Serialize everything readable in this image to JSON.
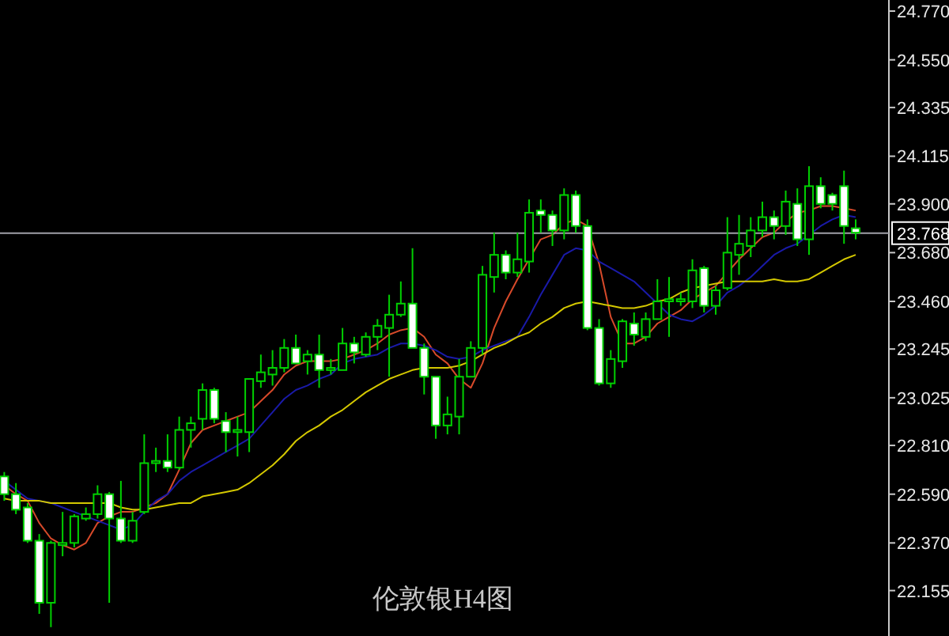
{
  "chart_data": {
    "type": "candlestick",
    "title": "伦敦银H4图",
    "color": "#00d000",
    "categories": [
      null,
      null,
      null,
      null,
      null,
      null,
      null,
      null,
      null,
      null,
      null,
      null,
      null,
      null,
      null,
      null,
      null,
      null,
      null,
      null,
      null,
      null,
      null,
      null,
      null,
      null,
      null,
      null,
      null,
      null,
      null,
      null,
      null,
      null,
      null,
      null,
      null,
      null,
      null,
      null,
      null,
      null,
      null,
      null,
      null,
      null,
      null,
      null,
      null,
      null,
      null,
      null,
      null,
      null,
      null,
      null,
      null,
      null,
      null,
      null,
      null,
      null,
      null,
      null,
      null,
      null,
      null,
      null,
      null,
      null,
      null,
      null,
      null,
      null
    ],
    "ohlc": [
      [
        22.67,
        22.69,
        22.56,
        22.59
      ],
      [
        22.59,
        22.64,
        22.5,
        22.52
      ],
      [
        22.53,
        22.55,
        22.37,
        22.38
      ],
      [
        22.38,
        22.41,
        22.05,
        22.1
      ],
      [
        22.1,
        22.38,
        21.99,
        22.37
      ],
      [
        22.36,
        22.51,
        22.31,
        22.37
      ],
      [
        22.37,
        22.5,
        22.35,
        22.49
      ],
      [
        22.48,
        22.53,
        22.47,
        22.5
      ],
      [
        22.5,
        22.63,
        22.48,
        22.59
      ],
      [
        22.59,
        22.6,
        22.1,
        22.48
      ],
      [
        22.48,
        22.65,
        22.37,
        22.38
      ],
      [
        22.38,
        22.51,
        22.37,
        22.47
      ],
      [
        22.51,
        22.86,
        22.5,
        22.73
      ],
      [
        22.73,
        22.8,
        22.69,
        22.74
      ],
      [
        22.74,
        22.86,
        22.69,
        22.71
      ],
      [
        22.71,
        22.94,
        22.7,
        22.88
      ],
      [
        22.88,
        22.94,
        22.8,
        22.91
      ],
      [
        22.93,
        23.09,
        22.88,
        23.06
      ],
      [
        23.06,
        23.07,
        22.91,
        22.93
      ],
      [
        22.92,
        22.96,
        22.78,
        22.87
      ],
      [
        22.87,
        22.94,
        22.76,
        22.88
      ],
      [
        22.87,
        23.11,
        22.78,
        23.11
      ],
      [
        23.1,
        23.22,
        23.07,
        23.14
      ],
      [
        23.13,
        23.24,
        23.08,
        23.16
      ],
      [
        23.16,
        23.29,
        23.14,
        23.25
      ],
      [
        23.25,
        23.31,
        23.18,
        23.18
      ],
      [
        23.19,
        23.24,
        23.13,
        23.22
      ],
      [
        23.22,
        23.31,
        23.07,
        23.15
      ],
      [
        23.15,
        23.2,
        23.13,
        23.16
      ],
      [
        23.15,
        23.34,
        23.15,
        23.27
      ],
      [
        23.27,
        23.3,
        23.18,
        23.23
      ],
      [
        23.22,
        23.32,
        23.21,
        23.3
      ],
      [
        23.3,
        23.38,
        23.24,
        23.35
      ],
      [
        23.34,
        23.49,
        23.12,
        23.4
      ],
      [
        23.4,
        23.55,
        23.39,
        23.45
      ],
      [
        23.45,
        23.7,
        23.25,
        23.25
      ],
      [
        23.25,
        23.27,
        23.04,
        23.12
      ],
      [
        23.12,
        23.12,
        22.84,
        22.9
      ],
      [
        22.9,
        23.03,
        22.86,
        22.95
      ],
      [
        22.94,
        23.2,
        22.86,
        23.12
      ],
      [
        23.12,
        23.28,
        23.12,
        23.25
      ],
      [
        23.25,
        23.62,
        23.22,
        23.58
      ],
      [
        23.57,
        23.77,
        23.5,
        23.67
      ],
      [
        23.67,
        23.69,
        23.56,
        23.59
      ],
      [
        23.59,
        23.77,
        23.57,
        23.65
      ],
      [
        23.64,
        23.92,
        23.59,
        23.86
      ],
      [
        23.87,
        23.92,
        23.77,
        23.85
      ],
      [
        23.85,
        23.87,
        23.71,
        23.78
      ],
      [
        23.78,
        23.97,
        23.74,
        23.94
      ],
      [
        23.94,
        23.96,
        23.77,
        23.8
      ],
      [
        23.8,
        23.83,
        23.33,
        23.34
      ],
      [
        23.34,
        23.38,
        23.08,
        23.09
      ],
      [
        23.09,
        23.24,
        23.07,
        23.2
      ],
      [
        23.19,
        23.38,
        23.16,
        23.37
      ],
      [
        23.36,
        23.41,
        23.26,
        23.31
      ],
      [
        23.3,
        23.41,
        23.28,
        23.38
      ],
      [
        23.38,
        23.56,
        23.38,
        23.46
      ],
      [
        23.46,
        23.57,
        23.3,
        23.47
      ],
      [
        23.46,
        23.5,
        23.44,
        23.47
      ],
      [
        23.46,
        23.65,
        23.43,
        23.6
      ],
      [
        23.61,
        23.62,
        23.41,
        23.44
      ],
      [
        23.44,
        23.53,
        23.4,
        23.51
      ],
      [
        23.52,
        23.84,
        23.51,
        23.68
      ],
      [
        23.67,
        23.85,
        23.58,
        23.72
      ],
      [
        23.71,
        23.84,
        23.66,
        23.78
      ],
      [
        23.78,
        23.91,
        23.75,
        23.84
      ],
      [
        23.84,
        23.87,
        23.74,
        23.8
      ],
      [
        23.8,
        23.96,
        23.76,
        23.91
      ],
      [
        23.9,
        23.97,
        23.71,
        23.74
      ],
      [
        23.74,
        24.07,
        23.67,
        23.98
      ],
      [
        23.98,
        24.02,
        23.88,
        23.9
      ],
      [
        23.94,
        23.95,
        23.87,
        23.9
      ],
      [
        23.98,
        24.05,
        23.72,
        23.8
      ],
      [
        23.79,
        23.83,
        23.74,
        23.77
      ]
    ],
    "series": [
      {
        "type": "line",
        "color": "#d84a2a",
        "values": [
          22.63,
          22.59,
          22.56,
          22.46,
          22.39,
          22.36,
          22.34,
          22.37,
          22.46,
          22.49,
          22.51,
          22.51,
          22.53,
          22.55,
          22.59,
          22.7,
          22.82,
          22.88,
          22.9,
          22.92,
          22.94,
          22.96,
          23.01,
          23.06,
          23.13,
          23.17,
          23.19,
          23.19,
          23.19,
          23.2,
          23.22,
          23.24,
          23.27,
          23.31,
          23.33,
          23.34,
          23.3,
          23.22,
          23.18,
          23.11,
          23.07,
          23.18,
          23.34,
          23.46,
          23.56,
          23.65,
          23.74,
          23.76,
          23.81,
          23.83,
          23.8,
          23.63,
          23.39,
          23.27,
          23.27,
          23.3,
          23.36,
          23.39,
          23.42,
          23.47,
          23.5,
          23.53,
          23.59,
          23.65,
          23.7,
          23.75,
          23.77,
          23.82,
          23.86,
          23.87,
          23.89,
          23.89,
          23.88,
          23.87
        ]
      },
      {
        "type": "line",
        "color": "#1a1aa8",
        "values": [
          22.65,
          22.61,
          22.57,
          22.56,
          22.55,
          22.53,
          22.51,
          22.49,
          22.47,
          22.45,
          22.43,
          22.45,
          22.51,
          22.56,
          22.59,
          22.65,
          22.69,
          22.72,
          22.75,
          22.78,
          22.81,
          22.84,
          22.9,
          22.96,
          23.02,
          23.06,
          23.08,
          23.11,
          23.13,
          23.18,
          23.2,
          23.21,
          23.22,
          23.25,
          23.27,
          23.27,
          23.26,
          23.24,
          23.21,
          23.2,
          23.21,
          23.24,
          23.26,
          23.28,
          23.3,
          23.39,
          23.49,
          23.58,
          23.67,
          23.7,
          23.69,
          23.64,
          23.61,
          23.58,
          23.55,
          23.5,
          23.45,
          23.4,
          23.38,
          23.37,
          23.4,
          23.44,
          23.5,
          23.53,
          23.57,
          23.62,
          23.67,
          23.7,
          23.72,
          23.76,
          23.8,
          23.83,
          23.85,
          23.84
        ]
      },
      {
        "type": "line",
        "color": "#d4c800",
        "values": [
          22.57,
          22.56,
          22.56,
          22.56,
          22.55,
          22.55,
          22.55,
          22.55,
          22.55,
          22.55,
          22.53,
          22.52,
          22.52,
          22.53,
          22.54,
          22.55,
          22.55,
          22.58,
          22.59,
          22.6,
          22.61,
          22.64,
          22.68,
          22.72,
          22.77,
          22.83,
          22.87,
          22.9,
          22.94,
          22.97,
          23.01,
          23.05,
          23.08,
          23.11,
          23.13,
          23.15,
          23.16,
          23.16,
          23.16,
          23.17,
          23.19,
          23.22,
          23.25,
          23.27,
          23.3,
          23.32,
          23.36,
          23.39,
          23.43,
          23.45,
          23.46,
          23.45,
          23.44,
          23.43,
          23.43,
          23.44,
          23.46,
          23.47,
          23.5,
          23.52,
          23.53,
          23.54,
          23.55,
          23.55,
          23.55,
          23.55,
          23.56,
          23.55,
          23.55,
          23.56,
          23.59,
          23.62,
          23.65,
          23.67
        ]
      }
    ],
    "ylim": [
      21.95,
      24.82
    ],
    "yticks": [
      {
        "value": 24.77,
        "label": "24.770"
      },
      {
        "value": 24.55,
        "label": "24.550"
      },
      24.335,
      24.115,
      {
        "value": 23.9,
        "label": "23.900"
      },
      {
        "value": 23.68,
        "label": "23.680"
      },
      {
        "value": 23.46,
        "label": "23.460"
      },
      23.245,
      23.025,
      {
        "value": 22.81,
        "label": "22.810"
      },
      {
        "value": 22.59,
        "label": "22.590"
      },
      {
        "value": 22.37,
        "label": "22.370"
      },
      22.155
    ],
    "ref_lines": [
      {
        "axis": "y",
        "value": 23.768,
        "label": "23.768",
        "color": "#a0a0a8"
      }
    ],
    "tick_labels": "y"
  }
}
